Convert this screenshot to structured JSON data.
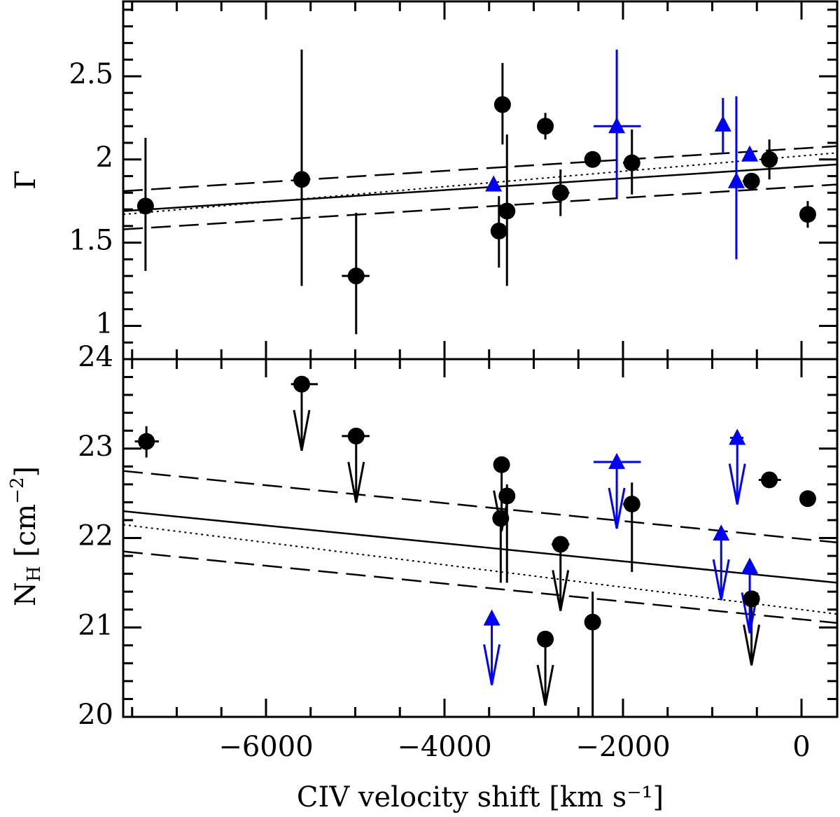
{
  "figure": {
    "xlabel": "CIV velocity shift [km s⁻¹]",
    "colors": {
      "circles": "#000000",
      "triangles": "#0000ff",
      "fits": "#000000"
    }
  },
  "chart_data": [
    {
      "type": "scatter",
      "panel": "top",
      "ylabel": "Γ",
      "xlim": [
        -7600,
        400
      ],
      "ylim": [
        0.8,
        2.95
      ],
      "x_ticks": [
        -6000,
        -4000,
        -2000,
        0
      ],
      "y_ticks": [
        1,
        1.5,
        2,
        2.5
      ],
      "y_tick_labels": [
        "1",
        "1.5",
        "2",
        "2.5"
      ],
      "series": [
        {
          "marker": "circle",
          "color": "#000000",
          "points": [
            {
              "x": -7350,
              "y": 1.72,
              "ylo": 1.33,
              "yhi": 2.13
            },
            {
              "x": -5600,
              "y": 1.88,
              "ylo": 1.24,
              "yhi": 2.66
            },
            {
              "x": -4990,
              "y": 1.3,
              "xlo": -5150,
              "xhi": -4840,
              "ylo": 0.95,
              "yhi": 1.68
            },
            {
              "x": -3350,
              "y": 2.33,
              "ylo": 2.09,
              "yhi": 2.58
            },
            {
              "x": -3390,
              "y": 1.57,
              "ylo": 1.35,
              "yhi": 1.78
            },
            {
              "x": -3300,
              "y": 1.69,
              "ylo": 1.24,
              "yhi": 2.15
            },
            {
              "x": -2870,
              "y": 2.2,
              "xlo": -2940,
              "xhi": -2780,
              "ylo": 2.12,
              "yhi": 2.28
            },
            {
              "x": -2700,
              "y": 1.8,
              "xlo": -2780,
              "xhi": -2600,
              "ylo": 1.66,
              "yhi": 1.94
            },
            {
              "x": -2340,
              "y": 2.0,
              "xlo": -2420,
              "xhi": -2250
            },
            {
              "x": -1900,
              "y": 1.98,
              "xlo": -2000,
              "xhi": -1820,
              "ylo": 1.79,
              "yhi": 2.18
            },
            {
              "x": -560,
              "y": 1.87,
              "xlo": -660,
              "xhi": -470
            },
            {
              "x": -360,
              "y": 2.0,
              "ylo": 1.88,
              "yhi": 2.12
            },
            {
              "x": 70,
              "y": 1.67,
              "ylo": 1.59,
              "yhi": 1.75
            }
          ]
        },
        {
          "marker": "triangle",
          "color": "#0000ff",
          "points": [
            {
              "x": -3450,
              "y": 1.85
            },
            {
              "x": -2070,
              "y": 2.2,
              "xlo": -2330,
              "xhi": -1800,
              "ylo": 1.77,
              "yhi": 2.66
            },
            {
              "x": -880,
              "y": 2.21,
              "ylo": 2.04,
              "yhi": 2.37
            },
            {
              "x": -730,
              "y": 1.87,
              "ylo": 1.4,
              "yhi": 2.38
            },
            {
              "x": -580,
              "y": 2.03
            }
          ]
        }
      ],
      "fits": [
        {
          "style": "solid",
          "x": [
            -7600,
            400
          ],
          "y": [
            1.69,
            1.97
          ]
        },
        {
          "style": "dashed",
          "x": [
            -7600,
            400
          ],
          "y": [
            1.81,
            2.08
          ]
        },
        {
          "style": "dashed",
          "x": [
            -7600,
            400
          ],
          "y": [
            1.58,
            1.85
          ]
        },
        {
          "style": "dotted",
          "x": [
            -7600,
            400
          ],
          "y": [
            1.67,
            2.04
          ]
        }
      ]
    },
    {
      "type": "scatter",
      "panel": "bottom",
      "ylabel": "NH [cm⁻²]",
      "ylabel_main": "N",
      "ylabel_sub": "H",
      "ylabel_rest": " [cm",
      "ylabel_sup": "−2",
      "ylabel_end": "]",
      "xlim": [
        -7600,
        400
      ],
      "ylim": [
        20,
        24
      ],
      "x_ticks": [
        -6000,
        -4000,
        -2000,
        0
      ],
      "x_tick_labels": [
        "−6000",
        "−4000",
        "−2000",
        "0"
      ],
      "y_ticks": [
        20,
        21,
        22,
        23,
        24
      ],
      "y_tick_labels": [
        "20",
        "21",
        "22",
        "23",
        "24"
      ],
      "series": [
        {
          "marker": "circle",
          "color": "#000000",
          "points": [
            {
              "x": -7340,
              "y": 23.08,
              "xlo": -7470,
              "xhi": -7200,
              "ylo": 22.9,
              "yhi": 23.25
            },
            {
              "x": -5600,
              "y": 23.72,
              "xlo": -5720,
              "xhi": -5420,
              "upper_limit": true
            },
            {
              "x": -4990,
              "y": 23.14,
              "xlo": -5150,
              "xhi": -4840,
              "upper_limit": true
            },
            {
              "x": -3360,
              "y": 22.82,
              "upper_limit": true
            },
            {
              "x": -3300,
              "y": 22.47,
              "ylo": 21.5,
              "yhi": 22.6
            },
            {
              "x": -3370,
              "y": 22.22,
              "ylo": 21.5,
              "yhi": 22.3
            },
            {
              "x": -2870,
              "y": 20.87,
              "xlo": -2960,
              "xhi": -2780,
              "upper_limit": true
            },
            {
              "x": -2700,
              "y": 21.93,
              "xlo": -2800,
              "xhi": -2600,
              "upper_limit": true
            },
            {
              "x": -2340,
              "y": 21.06,
              "xlo": -2420,
              "xhi": -2250,
              "ylo": 20.0,
              "yhi": 21.4
            },
            {
              "x": -1900,
              "y": 22.38,
              "xlo": -2000,
              "xhi": -1820,
              "ylo": 21.62,
              "yhi": 22.62
            },
            {
              "x": -560,
              "y": 21.32,
              "upper_limit": true
            },
            {
              "x": -360,
              "y": 22.65,
              "xlo": -480,
              "xhi": -230
            },
            {
              "x": 70,
              "y": 22.44
            }
          ]
        },
        {
          "marker": "triangle",
          "color": "#0000ff",
          "points": [
            {
              "x": -3470,
              "y": 21.1,
              "upper_limit": true
            },
            {
              "x": -2070,
              "y": 22.85,
              "xlo": -2330,
              "xhi": -1800,
              "upper_limit": true
            },
            {
              "x": -900,
              "y": 22.05,
              "upper_limit": true
            },
            {
              "x": -720,
              "y": 23.12,
              "xlo": -800,
              "xhi": -650,
              "upper_limit": true
            },
            {
              "x": -580,
              "y": 21.68,
              "upper_limit": true
            }
          ]
        }
      ],
      "fits": [
        {
          "style": "solid",
          "x": [
            -7600,
            400
          ],
          "y": [
            22.3,
            21.5
          ]
        },
        {
          "style": "dashed",
          "x": [
            -7600,
            400
          ],
          "y": [
            22.75,
            21.95
          ]
        },
        {
          "style": "dashed",
          "x": [
            -7600,
            400
          ],
          "y": [
            21.85,
            21.05
          ]
        },
        {
          "style": "dotted",
          "x": [
            -7600,
            400
          ],
          "y": [
            22.15,
            21.15
          ]
        }
      ]
    }
  ]
}
